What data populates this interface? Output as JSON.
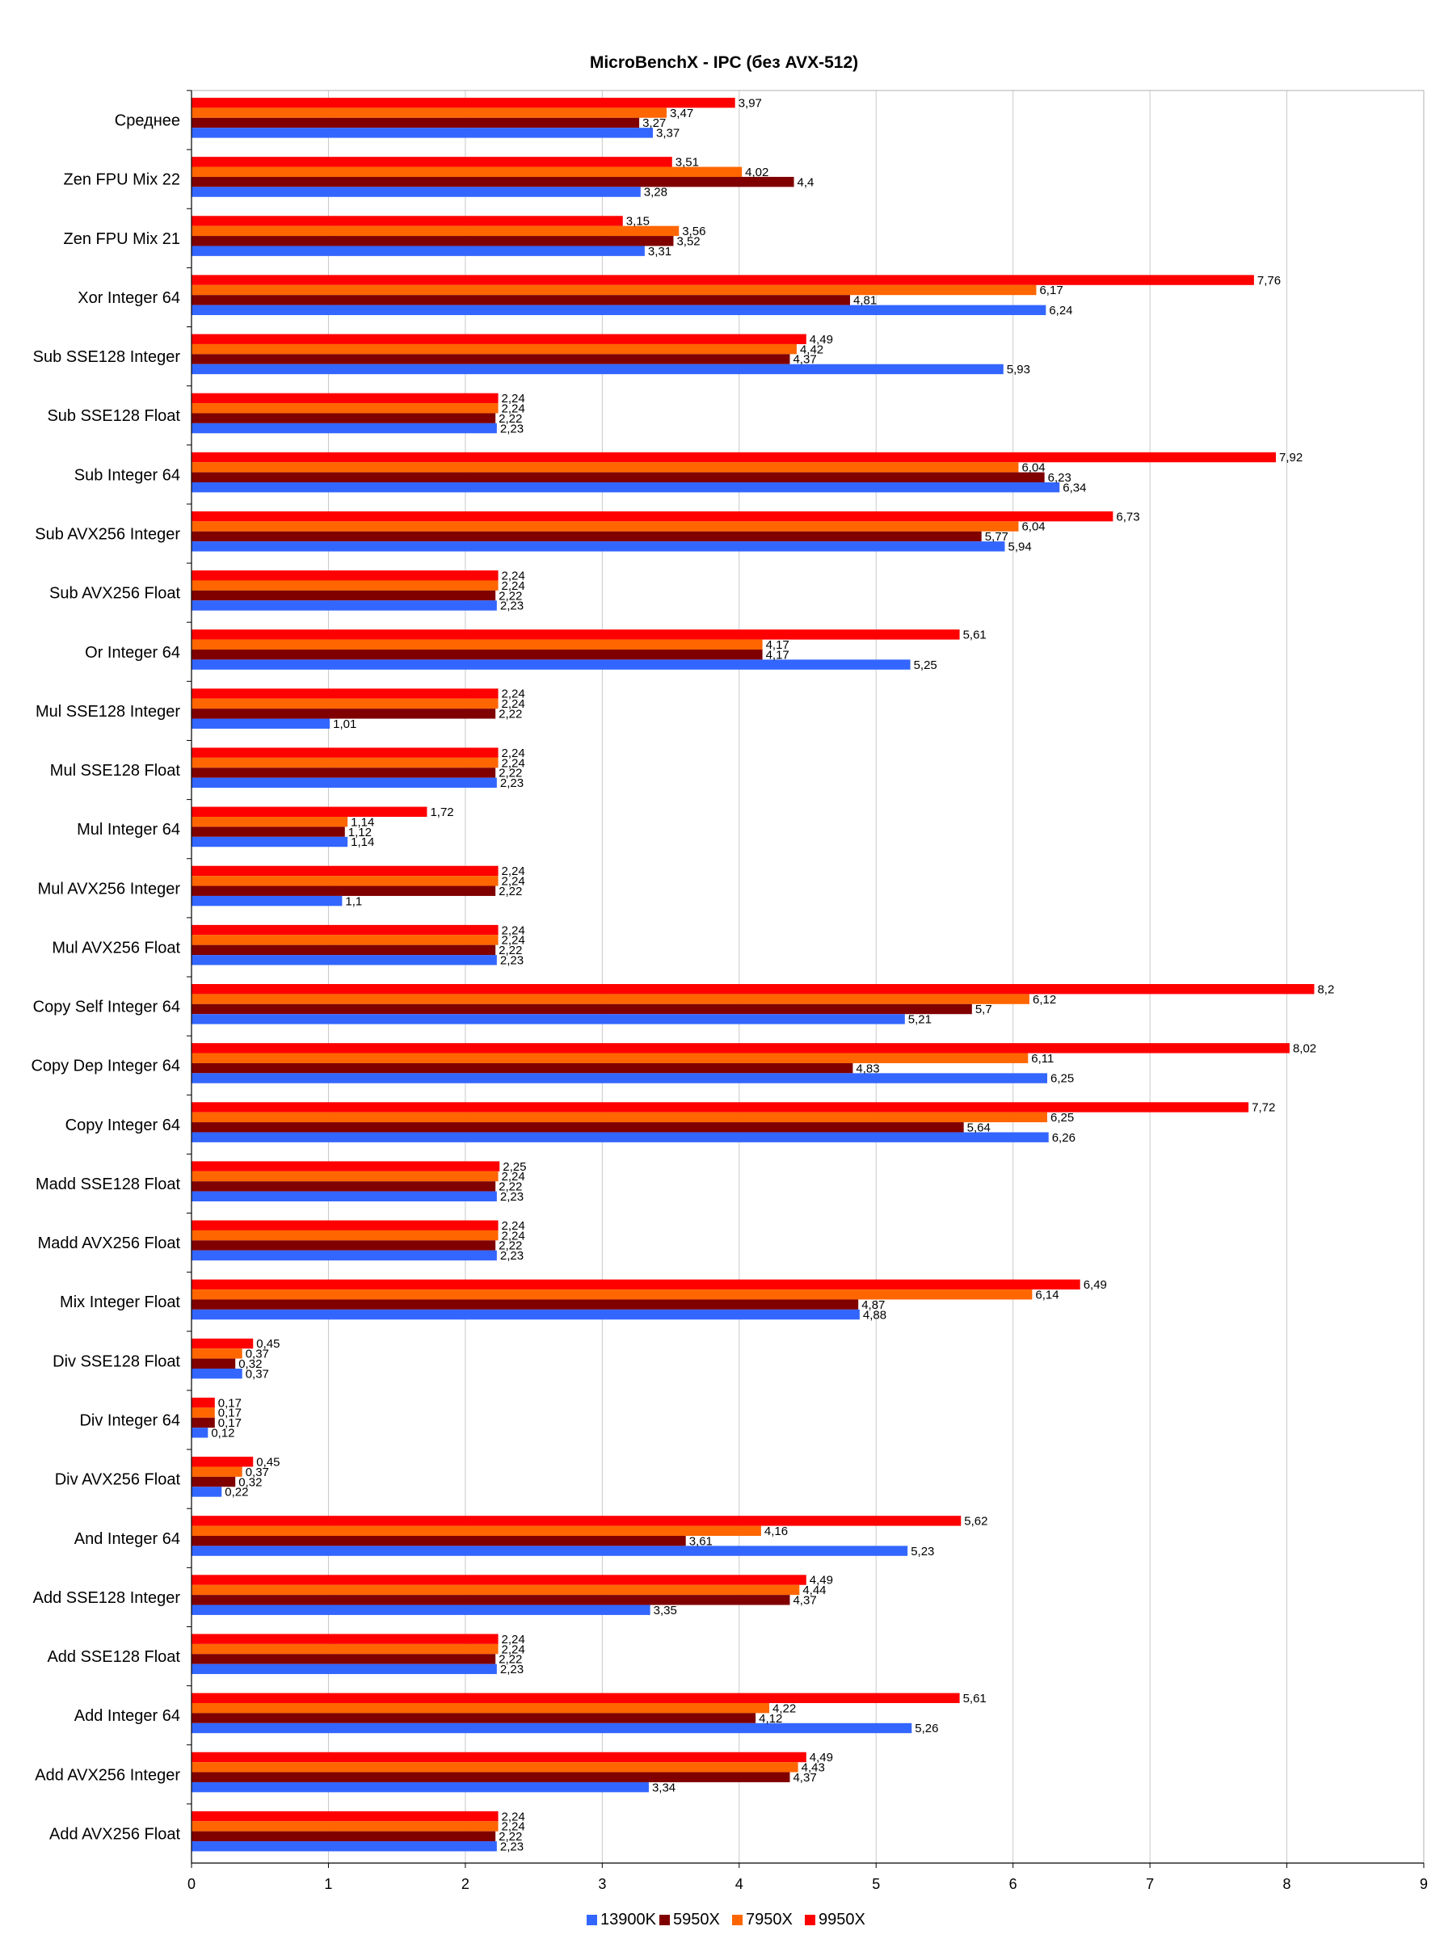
{
  "chart_data": {
    "type": "bar",
    "orientation": "horizontal",
    "title": "MicroBenchX - IPC (без AVX-512)",
    "xlabel": "",
    "ylabel": "",
    "xlim": [
      0,
      9
    ],
    "xticks": [
      "0",
      "1",
      "2",
      "3",
      "4",
      "5",
      "6",
      "7",
      "8",
      "9"
    ],
    "grid": true,
    "legend_position": "bottom",
    "categories": [
      "Среднее",
      "Zen FPU Mix 22",
      "Zen FPU Mix 21",
      "Xor Integer 64",
      "Sub SSE128 Integer",
      "Sub SSE128 Float",
      "Sub Integer 64",
      "Sub AVX256 Integer",
      "Sub AVX256 Float",
      "Or Integer 64",
      "Mul SSE128 Integer",
      "Mul SSE128 Float",
      "Mul Integer 64",
      "Mul AVX256 Integer",
      "Mul AVX256 Float",
      "Copy Self Integer 64",
      "Copy Dep Integer 64",
      "Copy Integer 64",
      "Madd SSE128 Float",
      "Madd AVX256 Float",
      "Mix Integer Float",
      "Div SSE128 Float",
      "Div Integer 64",
      "Div AVX256 Float",
      "And Integer 64",
      "Add SSE128 Integer",
      "Add SSE128 Float",
      "Add Integer 64",
      "Add AVX256 Integer",
      "Add AVX256 Float"
    ],
    "series": [
      {
        "name": "9950X",
        "color": "#ff0000",
        "values": [
          3.97,
          3.51,
          3.15,
          7.76,
          4.49,
          2.24,
          7.92,
          6.73,
          2.24,
          5.61,
          2.24,
          2.24,
          1.72,
          2.24,
          2.24,
          8.2,
          8.02,
          7.72,
          2.25,
          2.24,
          6.49,
          0.45,
          0.17,
          0.45,
          5.62,
          4.49,
          2.24,
          5.61,
          4.49,
          2.24
        ],
        "labels": [
          "3,97",
          "3,51",
          "3,15",
          "7,76",
          "4,49",
          "2,24",
          "7,92",
          "6,73",
          "2,24",
          "5,61",
          "2,24",
          "2,24",
          "1,72",
          "2,24",
          "2,24",
          "8,2",
          "8,02",
          "7,72",
          "2,25",
          "2,24",
          "6,49",
          "0,45",
          "0,17",
          "0,45",
          "5,62",
          "4,49",
          "2,24",
          "5,61",
          "4,49",
          "2,24"
        ]
      },
      {
        "name": "7950X",
        "color": "#ff6600",
        "values": [
          3.47,
          4.02,
          3.56,
          6.17,
          4.42,
          2.24,
          6.04,
          6.04,
          2.24,
          4.17,
          2.24,
          2.24,
          1.14,
          2.24,
          2.24,
          6.12,
          6.11,
          6.25,
          2.24,
          2.24,
          6.14,
          0.37,
          0.17,
          0.37,
          4.16,
          4.44,
          2.24,
          4.22,
          4.43,
          2.24
        ],
        "labels": [
          "3,47",
          "4,02",
          "3,56",
          "6,17",
          "4,42",
          "2,24",
          "6,04",
          "6,04",
          "2,24",
          "4,17",
          "2,24",
          "2,24",
          "1,14",
          "2,24",
          "2,24",
          "6,12",
          "6,11",
          "6,25",
          "2,24",
          "2,24",
          "6,14",
          "0,37",
          "0,17",
          "0,37",
          "4,16",
          "4,44",
          "2,24",
          "4,22",
          "4,43",
          "2,24"
        ]
      },
      {
        "name": "5950X",
        "color": "#800000",
        "values": [
          3.27,
          4.4,
          3.52,
          4.81,
          4.37,
          2.22,
          6.23,
          5.77,
          2.22,
          4.17,
          2.22,
          2.22,
          1.12,
          2.22,
          2.22,
          5.7,
          4.83,
          5.64,
          2.22,
          2.22,
          4.87,
          0.32,
          0.17,
          0.32,
          3.61,
          4.37,
          2.22,
          4.12,
          4.37,
          2.22
        ],
        "labels": [
          "3,27",
          "4,4",
          "3,52",
          "4,81",
          "4,37",
          "2,22",
          "6,23",
          "5,77",
          "2,22",
          "4,17",
          "2,22",
          "2,22",
          "1,12",
          "2,22",
          "2,22",
          "5,7",
          "4,83",
          "5,64",
          "2,22",
          "2,22",
          "4,87",
          "0,32",
          "0,17",
          "0,32",
          "3,61",
          "4,37",
          "2,22",
          "4,12",
          "4,37",
          "2,22"
        ]
      },
      {
        "name": "13900K",
        "color": "#3366ff",
        "values": [
          3.37,
          3.28,
          3.31,
          6.24,
          5.93,
          2.23,
          6.34,
          5.94,
          2.23,
          5.25,
          1.01,
          2.23,
          1.14,
          1.1,
          2.23,
          5.21,
          6.25,
          6.26,
          2.23,
          2.23,
          4.88,
          0.37,
          0.12,
          0.22,
          5.23,
          3.35,
          2.23,
          5.26,
          3.34,
          2.23
        ],
        "labels": [
          "3,37",
          "3,28",
          "3,31",
          "6,24",
          "5,93",
          "2,23",
          "6,34",
          "5,94",
          "2,23",
          "5,25",
          "1,01",
          "2,23",
          "1,14",
          "1,1",
          "2,23",
          "5,21",
          "6,25",
          "6,26",
          "2,23",
          "2,23",
          "4,88",
          "0,37",
          "0,12",
          "0,22",
          "5,23",
          "3,35",
          "2,23",
          "5,26",
          "3,34",
          "2,23"
        ]
      }
    ],
    "legend_order": [
      "13900K",
      "5950X",
      "7950X",
      "9950X"
    ]
  }
}
